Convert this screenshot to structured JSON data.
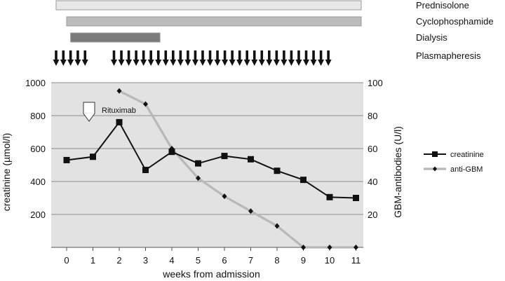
{
  "chart_data": {
    "type": "line",
    "x": [
      0,
      1,
      2,
      3,
      4,
      5,
      6,
      7,
      8,
      9,
      10,
      11
    ],
    "xlabel": "weeks from admission",
    "ylabel": "creatinine (µmol/l)",
    "y2label": "GBM-antibodies (U/l)",
    "ylim": [
      0,
      1000
    ],
    "y2lim": [
      0,
      100
    ],
    "yticks": [
      200,
      400,
      600,
      800,
      1000
    ],
    "y2ticks": [
      20,
      40,
      60,
      80,
      100
    ],
    "grid": true,
    "legend_position": "right",
    "series": [
      {
        "name": "creatinine",
        "axis": "left",
        "color": "#111111",
        "marker": "square",
        "x": [
          0,
          1,
          2,
          3,
          4,
          5,
          6,
          7,
          8,
          9,
          10,
          11
        ],
        "values": [
          530,
          550,
          760,
          470,
          580,
          510,
          555,
          535,
          465,
          410,
          305,
          300
        ]
      },
      {
        "name": "anti-GBM",
        "axis": "right",
        "color": "#b8b8b8",
        "marker": "diamond",
        "x": [
          2,
          3,
          4,
          5,
          6,
          7,
          8,
          9,
          10,
          11
        ],
        "values": [
          95,
          87,
          60,
          42,
          31,
          22,
          13,
          0,
          0,
          0
        ]
      }
    ],
    "annotations": [
      {
        "label": "Rituximab",
        "x": 1.2,
        "marker": "pentagon-arrow-down"
      }
    ],
    "timeline": [
      {
        "label": "Prednisolone",
        "start": -0.4,
        "end": 11.2,
        "color": "#e8e8e8"
      },
      {
        "label": "Cyclophosphamide",
        "start": 0,
        "end": 11.2,
        "color": "#bcbcbc"
      },
      {
        "label": "Dialysis",
        "start": 0.15,
        "end": 3.55,
        "color": "#7a7a7a"
      }
    ],
    "plasmapheresis": {
      "label": "Plasmapheresis",
      "groups": [
        {
          "start": -0.4,
          "end": 0.7,
          "count": 5
        },
        {
          "start": 1.8,
          "end": 9.95,
          "count": 30
        }
      ]
    }
  }
}
